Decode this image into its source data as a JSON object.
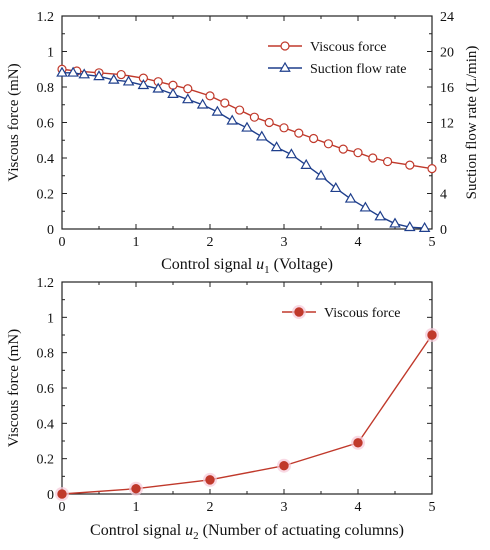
{
  "chart_data": [
    {
      "type": "line",
      "xlabel": "Control signal u1 (Voltage)",
      "xlabel_parts": {
        "before": "Control signal ",
        "var": "u",
        "sub": "1",
        "after": " (Voltage)"
      },
      "ylabel": "Viscous force (mN)",
      "y2label": "Suction flow rate (L/min)",
      "xlim": [
        0,
        5
      ],
      "ylim": [
        0,
        1.2
      ],
      "y2lim": [
        0,
        24
      ],
      "xticks": [
        "0",
        "1",
        "2",
        "3",
        "4",
        "5"
      ],
      "yticks": [
        "0",
        "0.2",
        "0.4",
        "0.6",
        "0.8",
        "1",
        "1.2"
      ],
      "y2ticks": [
        "0",
        "4",
        "8",
        "12",
        "16",
        "20",
        "24"
      ],
      "grid": false,
      "legend_position": "top-right",
      "series": [
        {
          "name": "Viscous force",
          "axis": "left",
          "marker": "circle",
          "color": "#c0392b",
          "x": [
            0,
            0.2,
            0.5,
            0.8,
            1.1,
            1.3,
            1.5,
            1.7,
            2.0,
            2.2,
            2.4,
            2.6,
            2.8,
            3.0,
            3.2,
            3.4,
            3.6,
            3.8,
            4.0,
            4.2,
            4.4,
            4.7,
            5.0
          ],
          "y": [
            0.9,
            0.89,
            0.88,
            0.87,
            0.85,
            0.83,
            0.81,
            0.79,
            0.75,
            0.71,
            0.67,
            0.63,
            0.6,
            0.57,
            0.54,
            0.51,
            0.48,
            0.45,
            0.43,
            0.4,
            0.38,
            0.36,
            0.34
          ]
        },
        {
          "name": "Suction flow rate",
          "axis": "right",
          "marker": "triangle",
          "color": "#1f3f8c",
          "x": [
            0,
            0.15,
            0.3,
            0.5,
            0.7,
            0.9,
            1.1,
            1.3,
            1.5,
            1.7,
            1.9,
            2.1,
            2.3,
            2.5,
            2.7,
            2.9,
            3.1,
            3.3,
            3.5,
            3.7,
            3.9,
            4.1,
            4.3,
            4.5,
            4.7,
            4.9
          ],
          "y": [
            17.6,
            17.6,
            17.4,
            17.2,
            16.8,
            16.6,
            16.2,
            15.8,
            15.2,
            14.6,
            14.0,
            13.2,
            12.2,
            11.4,
            10.4,
            9.2,
            8.4,
            7.2,
            6.0,
            4.6,
            3.4,
            2.4,
            1.4,
            0.6,
            0.2,
            0.1
          ]
        }
      ]
    },
    {
      "type": "line",
      "xlabel": "Control signal u2 (Number of actuating columns)",
      "xlabel_parts": {
        "before": "Control signal ",
        "var": "u",
        "sub": "2",
        "after": " (Number of actuating columns)"
      },
      "ylabel": "Viscous force (mN)",
      "xlim": [
        0,
        5
      ],
      "ylim": [
        0,
        1.2
      ],
      "xticks": [
        "0",
        "1",
        "2",
        "3",
        "4",
        "5"
      ],
      "yticks": [
        "0",
        "0.2",
        "0.4",
        "0.6",
        "0.8",
        "1",
        "1.2"
      ],
      "grid": false,
      "legend_position": "top-right",
      "series": [
        {
          "name": "Viscous force",
          "axis": "left",
          "marker": "filled-circle",
          "color": "#c0392b",
          "x": [
            0,
            1,
            2,
            3,
            4,
            5
          ],
          "y": [
            0.0,
            0.03,
            0.08,
            0.16,
            0.29,
            0.9
          ]
        }
      ]
    }
  ]
}
